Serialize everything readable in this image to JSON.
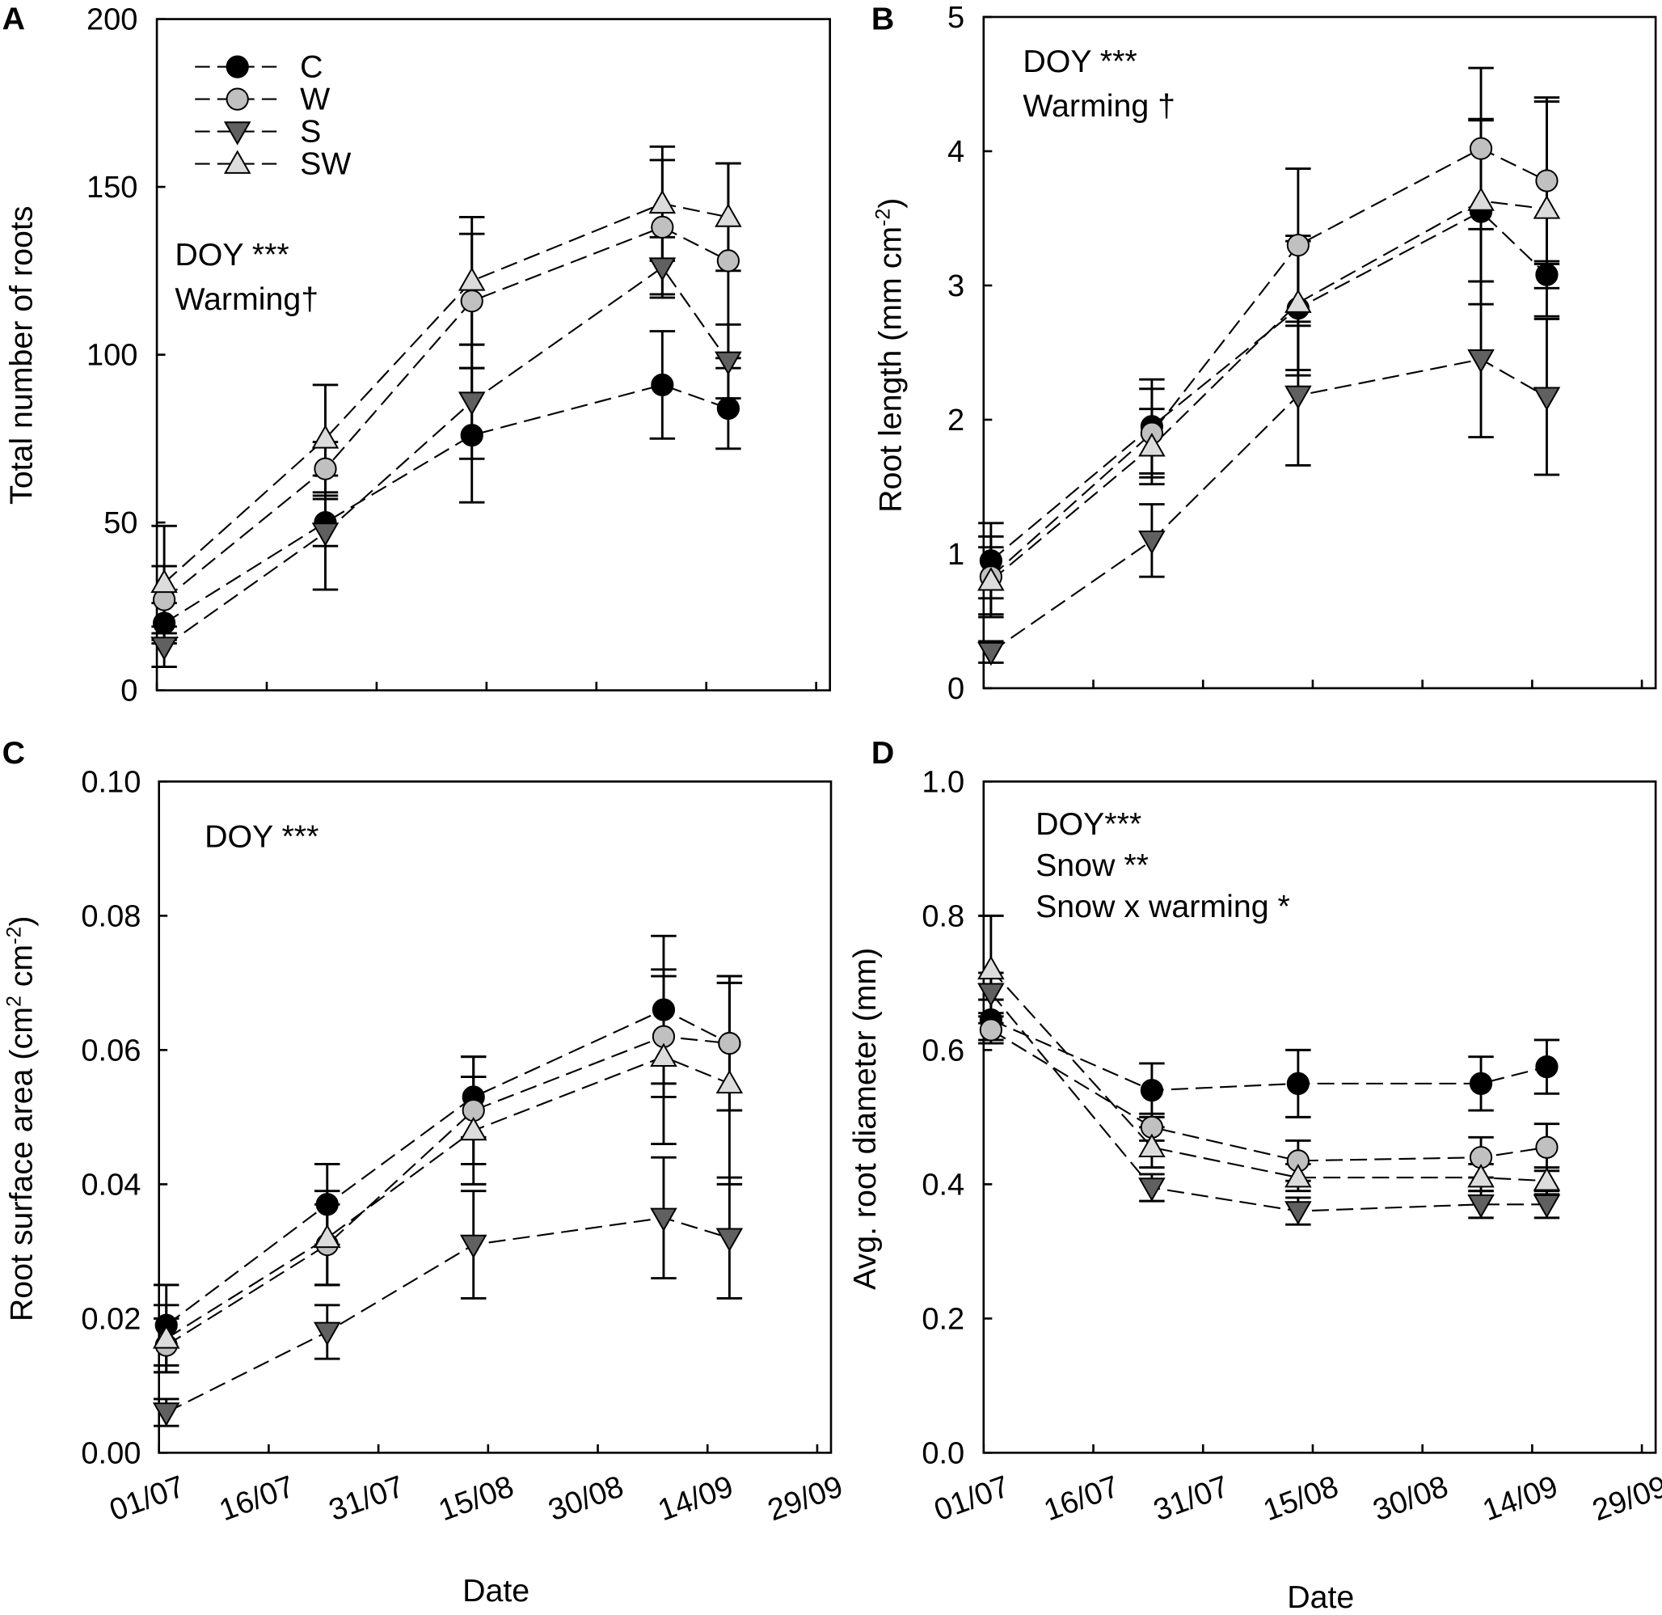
{
  "chart_data": [
    {
      "panel": "A",
      "type": "line",
      "xlabel": "",
      "ylabel": "Total number of roots",
      "ylim": [
        0,
        200
      ],
      "yticks": [
        "0",
        "50",
        "100",
        "150",
        "200"
      ],
      "ytick_values": [
        0,
        50,
        100,
        150,
        200
      ],
      "xticks": [],
      "annotations": [
        "DOY ***",
        "Warming†"
      ],
      "x_days_since_0107": [
        1,
        23,
        43,
        69,
        78
      ],
      "series": [
        {
          "name": "C",
          "values": [
            20,
            50,
            76,
            91,
            84
          ],
          "errors": [
            6,
            7,
            20,
            16,
            12
          ]
        },
        {
          "name": "W",
          "values": [
            27,
            66,
            116,
            138,
            128
          ],
          "errors": [
            10,
            8,
            20,
            20,
            29
          ]
        },
        {
          "name": "S",
          "values": [
            13,
            47,
            86,
            126,
            98
          ],
          "errors": [
            6,
            17,
            17,
            9,
            11
          ]
        },
        {
          "name": "SW",
          "values": [
            32,
            75,
            122,
            145,
            141
          ],
          "errors": [
            17,
            16,
            19,
            17,
            16
          ]
        }
      ]
    },
    {
      "panel": "B",
      "type": "line",
      "xlabel": "",
      "ylabel": "Root length (mm cm",
      "ylabel_sup": "-2",
      "ylabel_end": ")",
      "ylim": [
        0,
        5
      ],
      "yticks": [
        "0",
        "1",
        "2",
        "3",
        "4",
        "5"
      ],
      "ytick_values": [
        0,
        1,
        2,
        3,
        4,
        5
      ],
      "xticks": [],
      "annotations": [
        "DOY ***",
        "Warming †"
      ],
      "x_days_since_0107": [
        1,
        23,
        43,
        68,
        77
      ],
      "series": [
        {
          "name": "C",
          "values": [
            0.95,
            1.95,
            2.83,
            3.55,
            3.08
          ],
          "errors": [
            0.28,
            0.35,
            0.5,
            0.69,
            0.1
          ]
        },
        {
          "name": "W",
          "values": [
            0.83,
            1.9,
            3.3,
            4.02,
            3.78
          ],
          "errors": [
            0.3,
            0.33,
            0.57,
            0.6,
            0.62
          ]
        },
        {
          "name": "S",
          "values": [
            0.27,
            1.1,
            2.18,
            2.45,
            2.17
          ],
          "errors": [
            0.08,
            0.27,
            0.52,
            0.58,
            0.58
          ]
        },
        {
          "name": "SW",
          "values": [
            0.8,
            1.8,
            2.87,
            3.63,
            3.57
          ],
          "errors": [
            0.25,
            0.28,
            0.5,
            0.6,
            0.8
          ]
        }
      ]
    },
    {
      "panel": "C",
      "type": "line",
      "xlabel": "Date",
      "ylabel": "Root surface area (cm",
      "ylabel_sup": "2",
      "ylabel_mid": " cm",
      "ylabel_sup2": "-2",
      "ylabel_end": ")",
      "ylim": [
        0,
        0.1
      ],
      "yticks": [
        "0.00",
        "0.02",
        "0.04",
        "0.06",
        "0.08",
        "0.10"
      ],
      "ytick_values": [
        0,
        0.02,
        0.04,
        0.06,
        0.08,
        0.1
      ],
      "xticks": [
        "01/07",
        "16/07",
        "31/07",
        "15/08",
        "30/08",
        "14/09",
        "29/09"
      ],
      "annotations": [
        "DOY ***"
      ],
      "x_days_since_0107": [
        1,
        23,
        43,
        69,
        78
      ],
      "series": [
        {
          "name": "C",
          "values": [
            0.019,
            0.037,
            0.053,
            0.066,
            0.061
          ],
          "errors": [
            0.006,
            0.006,
            0.006,
            0.011,
            0.01
          ]
        },
        {
          "name": "W",
          "values": [
            0.016,
            0.031,
            0.051,
            0.062,
            0.061
          ],
          "errors": [
            0.004,
            0.006,
            0.008,
            0.009,
            0.01
          ]
        },
        {
          "name": "S",
          "values": [
            0.006,
            0.018,
            0.031,
            0.035,
            0.032
          ],
          "errors": [
            0.002,
            0.004,
            0.008,
            0.009,
            0.009
          ]
        },
        {
          "name": "SW",
          "values": [
            0.017,
            0.032,
            0.048,
            0.059,
            0.055
          ],
          "errors": [
            0.005,
            0.007,
            0.008,
            0.013,
            0.015
          ]
        }
      ]
    },
    {
      "panel": "D",
      "type": "line",
      "xlabel": "Date",
      "ylabel": "Avg. root diameter (mm)",
      "ylim": [
        0,
        1.0
      ],
      "yticks": [
        "0.0",
        "0.2",
        "0.4",
        "0.6",
        "0.8",
        "1.0"
      ],
      "ytick_values": [
        0,
        0.2,
        0.4,
        0.6,
        0.8,
        1.0
      ],
      "xticks": [
        "01/07",
        "16/07",
        "31/07",
        "15/08",
        "30/08",
        "14/09",
        "29/09"
      ],
      "annotations": [
        "DOY***",
        "Snow **",
        "Snow x warming *"
      ],
      "x_days_since_0107": [
        1,
        23,
        43,
        68,
        77
      ],
      "series": [
        {
          "name": "C",
          "values": [
            0.645,
            0.54,
            0.55,
            0.55,
            0.575
          ],
          "errors": [
            0.03,
            0.04,
            0.05,
            0.04,
            0.04
          ]
        },
        {
          "name": "W",
          "values": [
            0.63,
            0.485,
            0.435,
            0.44,
            0.455
          ],
          "errors": [
            0.02,
            0.02,
            0.03,
            0.03,
            0.035
          ]
        },
        {
          "name": "S",
          "values": [
            0.685,
            0.395,
            0.36,
            0.37,
            0.37
          ],
          "errors": [
            0.03,
            0.02,
            0.02,
            0.02,
            0.02
          ]
        },
        {
          "name": "SW",
          "values": [
            0.72,
            0.455,
            0.41,
            0.41,
            0.405
          ],
          "errors": [
            0.08,
            0.03,
            0.02,
            0.02,
            0.02
          ]
        }
      ]
    }
  ],
  "legend": {
    "placement": "top-left of panel A",
    "entries": [
      {
        "name": "C",
        "marker": "filled-circle",
        "color": "#000000"
      },
      {
        "name": "W",
        "marker": "circle",
        "color": "#c0c0c0"
      },
      {
        "name": "S",
        "marker": "triangle-down",
        "color": "#606060"
      },
      {
        "name": "SW",
        "marker": "triangle-up",
        "color": "#dcdcdc"
      }
    ]
  },
  "panel_letters": [
    "A",
    "B",
    "C",
    "D"
  ],
  "x_range_days": [
    0,
    90
  ]
}
